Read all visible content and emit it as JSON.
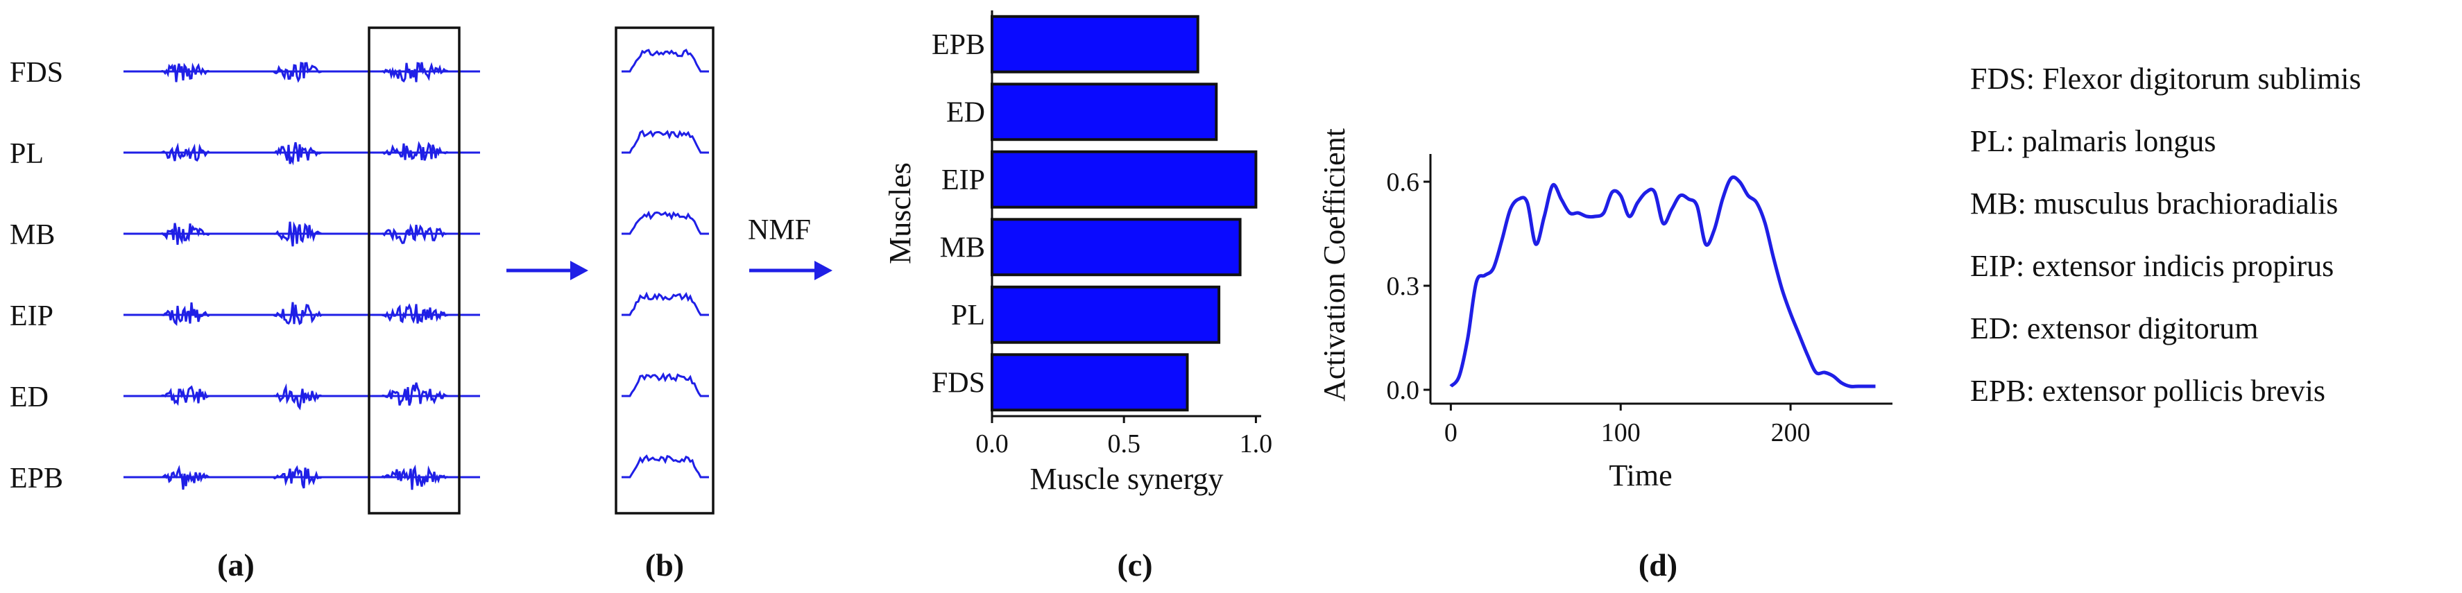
{
  "panels": {
    "a": {
      "label": "(a)",
      "muscles": [
        "FDS",
        "PL",
        "MB",
        "EIP",
        "ED",
        "EPB"
      ]
    },
    "b": {
      "label": "(b)"
    },
    "nmf_label": "NMF",
    "c": {
      "label": "(c)"
    },
    "d": {
      "label": "(d)"
    }
  },
  "legend": [
    "FDS: Flexor digitorum sublimis",
    "PL: palmaris longus",
    "MB: musculus brachioradialis",
    "EIP: extensor indicis propirus",
    "ED: extensor digitorum",
    "EPB: extensor pollicis brevis"
  ],
  "chart_data": [
    {
      "type": "bar",
      "orientation": "horizontal",
      "categories": [
        "EPB",
        "ED",
        "EIP",
        "MB",
        "PL",
        "FDS"
      ],
      "values": [
        0.78,
        0.85,
        1.0,
        0.94,
        0.86,
        0.74
      ],
      "xlabel": "Muscle synergy",
      "ylabel": "Muscles",
      "xlim": [
        0.0,
        1.02
      ],
      "xticks": [
        "0.0",
        "0.5",
        "1.0"
      ]
    },
    {
      "type": "line",
      "xlabel": "Time",
      "ylabel": "Activation Coefficient",
      "xlim": [
        -12,
        260
      ],
      "ylim": [
        -0.04,
        0.68
      ],
      "xticks": [
        "0",
        "100",
        "200"
      ],
      "yticks": [
        "0.0",
        "0.3",
        "0.6"
      ],
      "x": [
        0,
        5,
        10,
        15,
        20,
        25,
        30,
        35,
        40,
        45,
        50,
        55,
        60,
        65,
        70,
        75,
        80,
        85,
        90,
        95,
        100,
        105,
        110,
        115,
        120,
        125,
        130,
        135,
        140,
        145,
        150,
        155,
        160,
        165,
        170,
        175,
        180,
        185,
        190,
        195,
        200,
        205,
        210,
        215,
        220,
        225,
        230,
        235,
        240,
        245,
        250
      ],
      "y": [
        0.01,
        0.04,
        0.15,
        0.31,
        0.33,
        0.35,
        0.43,
        0.52,
        0.55,
        0.54,
        0.42,
        0.5,
        0.59,
        0.55,
        0.51,
        0.51,
        0.5,
        0.5,
        0.51,
        0.57,
        0.56,
        0.5,
        0.54,
        0.57,
        0.57,
        0.48,
        0.52,
        0.56,
        0.55,
        0.53,
        0.42,
        0.46,
        0.55,
        0.61,
        0.6,
        0.56,
        0.54,
        0.48,
        0.38,
        0.29,
        0.22,
        0.16,
        0.1,
        0.05,
        0.05,
        0.04,
        0.02,
        0.01,
        0.01,
        0.01,
        0.01
      ]
    }
  ]
}
